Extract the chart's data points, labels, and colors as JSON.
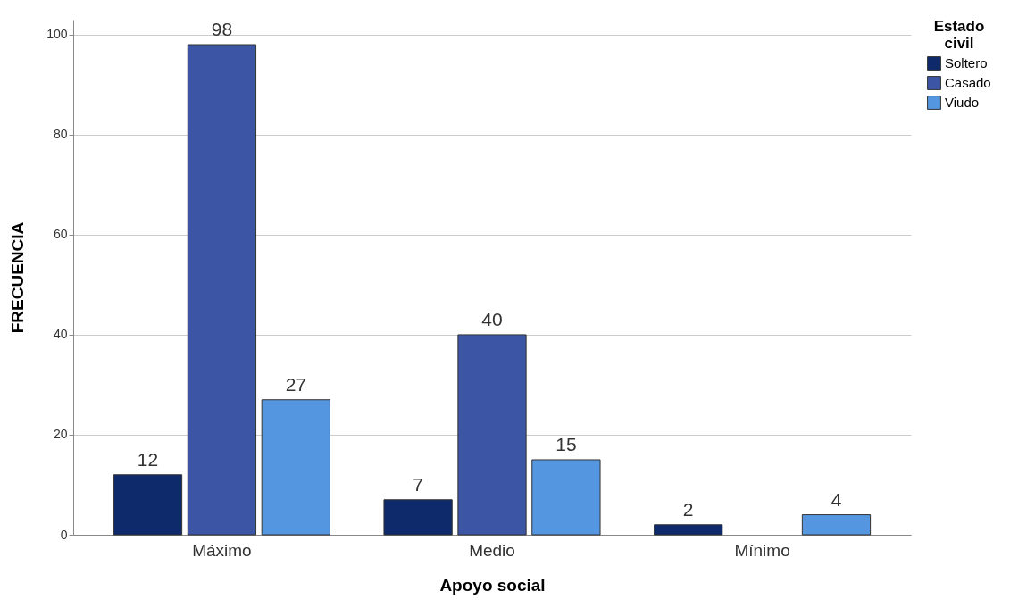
{
  "chart_data": {
    "type": "bar",
    "xlabel": "Apoyo social",
    "ylabel": "FRECUENCIA",
    "legend_title": "Estado civil",
    "categories": [
      "Máximo",
      "Medio",
      "Mínimo"
    ],
    "series": [
      {
        "name": "Soltero",
        "color": "#0f2a6b",
        "values": [
          12,
          7,
          2
        ]
      },
      {
        "name": "Casado",
        "color": "#3d55a5",
        "values": [
          98,
          40,
          null
        ]
      },
      {
        "name": "Viudo",
        "color": "#5596e0",
        "values": [
          27,
          15,
          4
        ]
      }
    ],
    "ylim": [
      0,
      103
    ],
    "yticks": [
      0,
      20,
      40,
      60,
      80,
      100
    ],
    "grid": "y",
    "legend": "top right",
    "data_labels": true
  }
}
